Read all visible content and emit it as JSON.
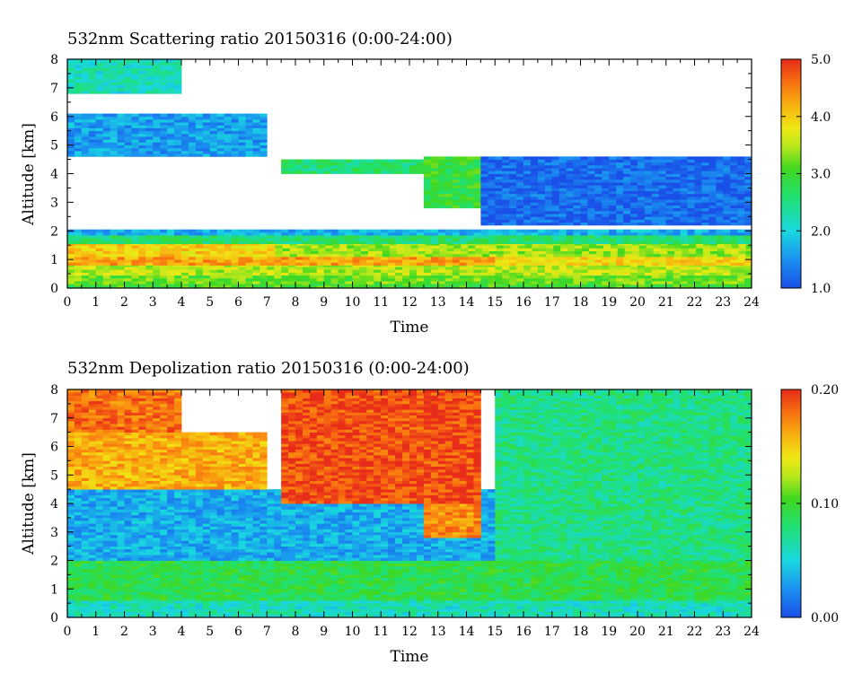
{
  "chart_data": [
    {
      "type": "heatmap",
      "title": "532nm Scattering ratio  20150316 (0:00-24:00)",
      "xlabel": "Time",
      "ylabel": "Altitude [km]",
      "xlim": [
        0,
        24
      ],
      "ylim": [
        0,
        8
      ],
      "x_ticks": [
        "0",
        "1",
        "2",
        "3",
        "4",
        "5",
        "6",
        "7",
        "8",
        "9",
        "10",
        "11",
        "12",
        "13",
        "14",
        "15",
        "16",
        "17",
        "18",
        "19",
        "20",
        "21",
        "22",
        "23",
        "24"
      ],
      "y_ticks": [
        "0",
        "1",
        "2",
        "3",
        "4",
        "5",
        "6",
        "7",
        "8"
      ],
      "colorbar": {
        "min": 1.0,
        "max": 5.0,
        "ticks": [
          "1.0",
          "2.0",
          "3.0",
          "4.0",
          "5.0"
        ]
      },
      "layers": [
        {
          "t0": 0,
          "t1": 24,
          "z0": 0.0,
          "z1": 0.15,
          "v": 3.0
        },
        {
          "t0": 0,
          "t1": 24,
          "z0": 0.15,
          "z1": 0.45,
          "v": 3.2
        },
        {
          "t0": 0,
          "t1": 24,
          "z0": 0.45,
          "z1": 0.8,
          "v": 3.5
        },
        {
          "t0": 0,
          "t1": 15,
          "z0": 0.8,
          "z1": 1.1,
          "v": 4.3
        },
        {
          "t0": 15,
          "t1": 24,
          "z0": 0.8,
          "z1": 1.1,
          "v": 3.9
        },
        {
          "t0": 0,
          "t1": 7.3,
          "z0": 1.1,
          "z1": 1.55,
          "v": 4.0
        },
        {
          "t0": 7.3,
          "t1": 24,
          "z0": 1.1,
          "z1": 1.55,
          "v": 3.4
        },
        {
          "t0": 0,
          "t1": 24,
          "z0": 1.55,
          "z1": 1.85,
          "v": 2.6
        },
        {
          "t0": 0,
          "t1": 24,
          "z0": 1.85,
          "z1": 2.05,
          "v": 1.7
        },
        {
          "t0": 0,
          "t1": 7,
          "z0": 4.6,
          "z1": 6.1,
          "v": 1.6
        },
        {
          "t0": 0,
          "t1": 4,
          "z0": 6.8,
          "z1": 8.0,
          "v": 2.2
        },
        {
          "t0": 7.5,
          "t1": 12.5,
          "z0": 4.0,
          "z1": 4.5,
          "v": 2.6
        },
        {
          "t0": 12.5,
          "t1": 14.5,
          "z0": 2.8,
          "z1": 4.6,
          "v": 2.9
        },
        {
          "t0": 14.5,
          "t1": 24,
          "z0": 2.2,
          "z1": 4.6,
          "v": 1.2
        }
      ]
    },
    {
      "type": "heatmap",
      "title": "532nm Depolization ratio  20150316 (0:00-24:00)",
      "xlabel": "Time",
      "ylabel": "Altitude [km]",
      "xlim": [
        0,
        24
      ],
      "ylim": [
        0,
        8
      ],
      "x_ticks": [
        "0",
        "1",
        "2",
        "3",
        "4",
        "5",
        "6",
        "7",
        "8",
        "9",
        "10",
        "11",
        "12",
        "13",
        "14",
        "15",
        "16",
        "17",
        "18",
        "19",
        "20",
        "21",
        "22",
        "23",
        "24"
      ],
      "y_ticks": [
        "0",
        "1",
        "2",
        "3",
        "4",
        "5",
        "6",
        "7",
        "8"
      ],
      "colorbar": {
        "min": 0.0,
        "max": 0.2,
        "ticks": [
          "0.00",
          "0.10",
          "0.20"
        ]
      },
      "layers": [
        {
          "t0": 0,
          "t1": 24,
          "z0": 0.0,
          "z1": 0.6,
          "v": 0.06
        },
        {
          "t0": 0,
          "t1": 24,
          "z0": 0.6,
          "z1": 2.0,
          "v": 0.09
        },
        {
          "t0": 0,
          "t1": 15,
          "z0": 2.0,
          "z1": 4.5,
          "v": 0.035
        },
        {
          "t0": 15,
          "t1": 24,
          "z0": 2.0,
          "z1": 8.0,
          "v": 0.075
        },
        {
          "t0": 0,
          "t1": 7,
          "z0": 4.5,
          "z1": 6.5,
          "v": 0.16
        },
        {
          "t0": 12.5,
          "t1": 14.5,
          "z0": 2.8,
          "z1": 4.6,
          "v": 0.17
        },
        {
          "t0": 0,
          "t1": 4,
          "z0": 6.5,
          "z1": 8.0,
          "v": 0.18
        },
        {
          "t0": 7.5,
          "t1": 14.5,
          "z0": 4.0,
          "z1": 8.0,
          "v": 0.19
        }
      ]
    }
  ]
}
